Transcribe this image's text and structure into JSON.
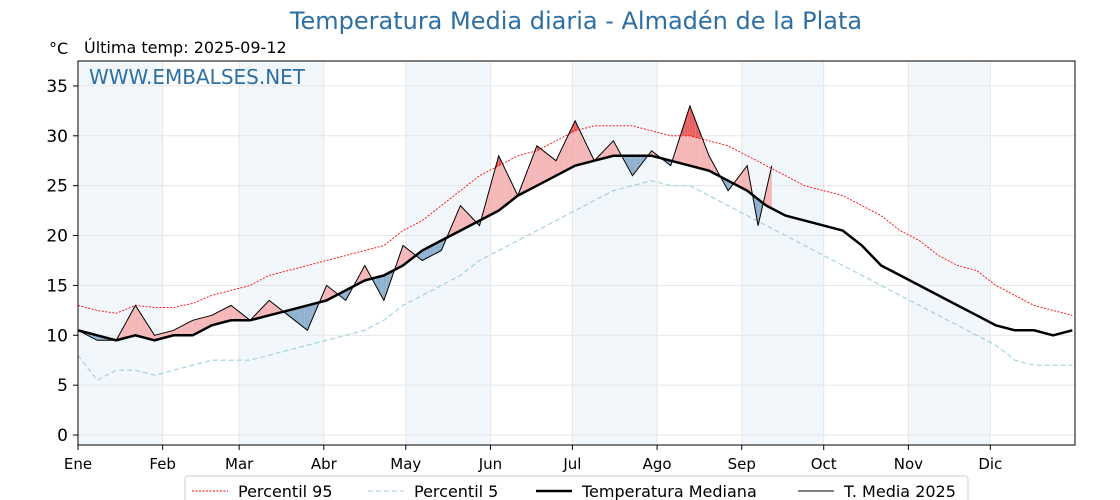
{
  "chart_data": {
    "type": "area",
    "title": "Temperatura Media diaria - Almadén de la Plata",
    "subtitle": "Última temp: 2025-09-12",
    "ylabel": "°C",
    "watermark": "WWW.EMBALSES.NET",
    "ylim": [
      -1,
      37.5
    ],
    "xlim": [
      1,
      366
    ],
    "yticks": [
      0,
      5,
      10,
      15,
      20,
      25,
      30,
      35
    ],
    "grid": true,
    "legend_position": "bottom",
    "months": [
      {
        "label": "Ene",
        "day": 1
      },
      {
        "label": "Feb",
        "day": 32
      },
      {
        "label": "Mar",
        "day": 60
      },
      {
        "label": "Abr",
        "day": 91
      },
      {
        "label": "May",
        "day": 121
      },
      {
        "label": "Jun",
        "day": 152
      },
      {
        "label": "Jul",
        "day": 182
      },
      {
        "label": "Ago",
        "day": 213
      },
      {
        "label": "Sep",
        "day": 244
      },
      {
        "label": "Oct",
        "day": 274
      },
      {
        "label": "Nov",
        "day": 305
      },
      {
        "label": "Dic",
        "day": 335
      }
    ],
    "series": [
      {
        "name": "Percentil 95",
        "style": "dotted",
        "color": "#ff0000",
        "x": [
          1,
          8,
          15,
          22,
          29,
          36,
          43,
          50,
          57,
          64,
          71,
          78,
          85,
          92,
          99,
          106,
          113,
          120,
          127,
          134,
          141,
          148,
          155,
          162,
          169,
          176,
          183,
          190,
          197,
          204,
          211,
          218,
          225,
          232,
          239,
          246,
          253,
          260,
          267,
          274,
          281,
          288,
          295,
          302,
          309,
          316,
          323,
          330,
          337,
          344,
          351,
          358,
          365
        ],
        "y": [
          13.0,
          12.5,
          12.2,
          13.0,
          12.8,
          12.8,
          13.2,
          14.0,
          14.5,
          15.0,
          16.0,
          16.5,
          17.0,
          17.5,
          18.0,
          18.5,
          19.0,
          20.5,
          21.5,
          23.0,
          24.5,
          26.0,
          27.0,
          28.0,
          28.5,
          29.5,
          30.5,
          31.0,
          31.0,
          31.0,
          30.5,
          30.0,
          30.0,
          29.5,
          29.0,
          28.0,
          27.0,
          26.0,
          25.0,
          24.5,
          24.0,
          23.0,
          22.0,
          20.5,
          19.5,
          18.0,
          17.0,
          16.5,
          15.0,
          14.0,
          13.0,
          12.5,
          12.0
        ]
      },
      {
        "name": "Percentil 5",
        "style": "dashed",
        "color": "#9fcfe0",
        "x": [
          1,
          8,
          15,
          22,
          29,
          36,
          43,
          50,
          57,
          64,
          71,
          78,
          85,
          92,
          99,
          106,
          113,
          120,
          127,
          134,
          141,
          148,
          155,
          162,
          169,
          176,
          183,
          190,
          197,
          204,
          211,
          218,
          225,
          232,
          239,
          246,
          253,
          260,
          267,
          274,
          281,
          288,
          295,
          302,
          309,
          316,
          323,
          330,
          337,
          344,
          351,
          358,
          365
        ],
        "y": [
          8.0,
          5.5,
          6.5,
          6.5,
          6.0,
          6.5,
          7.0,
          7.5,
          7.5,
          7.5,
          8.0,
          8.5,
          9.0,
          9.5,
          10.0,
          10.5,
          11.5,
          13.0,
          14.0,
          15.0,
          16.0,
          17.5,
          18.5,
          19.5,
          20.5,
          21.5,
          22.5,
          23.5,
          24.5,
          25.0,
          25.5,
          25.0,
          25.0,
          24.0,
          23.0,
          22.0,
          21.0,
          20.0,
          19.0,
          18.0,
          17.0,
          16.0,
          15.0,
          14.0,
          13.0,
          12.0,
          11.0,
          10.0,
          9.0,
          7.5,
          7.0,
          7.0,
          7.0
        ]
      },
      {
        "name": "Temperatura Mediana",
        "style": "solid-thick",
        "color": "#000000",
        "x": [
          1,
          8,
          15,
          22,
          29,
          36,
          43,
          50,
          57,
          64,
          71,
          78,
          85,
          92,
          99,
          106,
          113,
          120,
          127,
          134,
          141,
          148,
          155,
          162,
          169,
          176,
          183,
          190,
          197,
          204,
          211,
          218,
          225,
          232,
          239,
          246,
          253,
          260,
          267,
          274,
          281,
          288,
          295,
          302,
          309,
          316,
          323,
          330,
          337,
          344,
          351,
          358,
          365
        ],
        "y": [
          10.5,
          10.0,
          9.5,
          10.0,
          9.5,
          10.0,
          10.0,
          11.0,
          11.5,
          11.5,
          12.0,
          12.5,
          13.0,
          13.5,
          14.5,
          15.5,
          16.0,
          17.0,
          18.5,
          19.5,
          20.5,
          21.5,
          22.5,
          24.0,
          25.0,
          26.0,
          27.0,
          27.5,
          28.0,
          28.0,
          28.0,
          27.5,
          27.0,
          26.5,
          25.5,
          24.5,
          23.0,
          22.0,
          21.5,
          21.0,
          20.5,
          19.0,
          17.0,
          16.0,
          15.0,
          14.0,
          13.0,
          12.0,
          11.0,
          10.5,
          10.5,
          10.0,
          10.5
        ]
      },
      {
        "name": "T. Media 2025",
        "style": "solid-thin",
        "color": "#000000",
        "x": [
          1,
          8,
          15,
          22,
          29,
          36,
          43,
          50,
          57,
          64,
          71,
          78,
          85,
          92,
          99,
          106,
          113,
          120,
          127,
          134,
          141,
          148,
          155,
          162,
          169,
          176,
          183,
          190,
          197,
          204,
          211,
          218,
          225,
          232,
          239,
          246,
          250,
          255
        ],
        "y": [
          10.5,
          9.5,
          9.5,
          13.0,
          10.0,
          10.5,
          11.5,
          12.0,
          13.0,
          11.5,
          13.5,
          12.0,
          10.5,
          15.0,
          13.5,
          17.0,
          13.5,
          19.0,
          17.5,
          18.5,
          23.0,
          21.0,
          28.0,
          24.0,
          29.0,
          27.5,
          31.5,
          27.5,
          29.5,
          26.0,
          28.5,
          27.0,
          33.0,
          28.0,
          24.5,
          27.0,
          21.0,
          27.0
        ]
      }
    ]
  }
}
